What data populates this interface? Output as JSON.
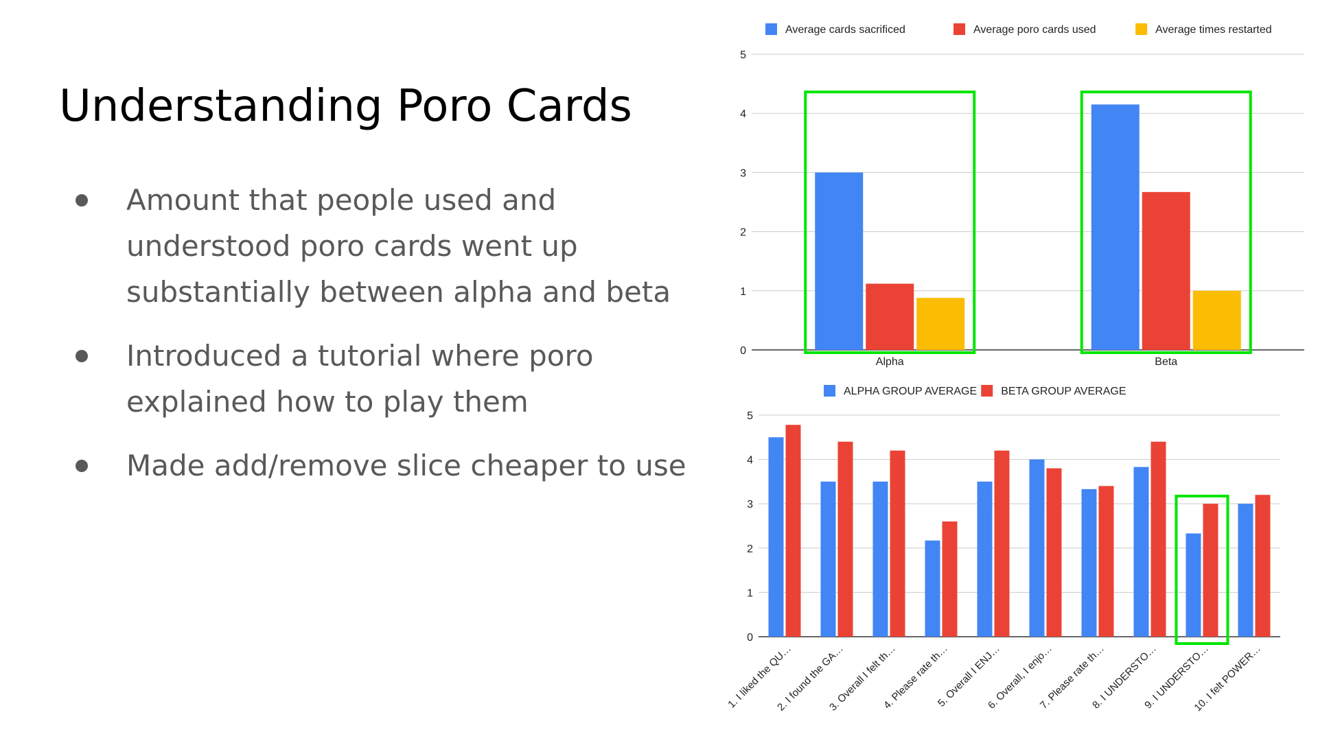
{
  "slide": {
    "title": "Understanding Poro Cards",
    "bullets": [
      "Amount that people used and understood poro cards went up substantially between alpha and beta",
      "Introduced a tutorial where poro explained how to play them",
      "Made add/remove slice cheaper to use"
    ],
    "highlight_color": "#00e600"
  },
  "chart_data": [
    {
      "type": "bar",
      "categories": [
        "Alpha",
        "Beta"
      ],
      "series": [
        {
          "name": "Average cards sacrificed",
          "values": [
            3.0,
            4.15
          ],
          "color": "#4285f4"
        },
        {
          "name": "Average poro cards used",
          "values": [
            1.12,
            2.67
          ],
          "color": "#ea4335"
        },
        {
          "name": "Average times restarted",
          "values": [
            0.88,
            1.0
          ],
          "color": "#fbbc04"
        }
      ],
      "ylim": [
        0,
        5
      ],
      "yticks": [
        0,
        1,
        2,
        3,
        4,
        5
      ],
      "grid": true,
      "legend": "top",
      "highlighted_categories": [
        "Alpha",
        "Beta"
      ]
    },
    {
      "type": "bar",
      "categories": [
        "1. I liked the QU…",
        "2. I found the GA…",
        "3. Overall I felt th…",
        "4. Please rate th…",
        "5. Overall I ENJ…",
        "6. Overall, I enjo…",
        "7. Please rate th…",
        "8. I UNDERSTO…",
        "9. I UNDERSTO…",
        "10. I felt POWER…"
      ],
      "series": [
        {
          "name": "ALPHA GROUP AVERAGE",
          "values": [
            4.5,
            3.5,
            3.5,
            2.17,
            3.5,
            4.0,
            3.33,
            3.83,
            2.33,
            3.0
          ],
          "color": "#4285f4"
        },
        {
          "name": "BETA GROUP AVERAGE",
          "values": [
            4.78,
            4.4,
            4.2,
            2.6,
            4.2,
            3.8,
            3.4,
            4.4,
            3.0,
            3.2
          ],
          "color": "#ea4335"
        }
      ],
      "ylim": [
        0,
        5
      ],
      "yticks": [
        0,
        1,
        2,
        3,
        4,
        5
      ],
      "grid": true,
      "legend": "top",
      "highlighted_categories": [
        "9. I UNDERSTO…"
      ]
    }
  ]
}
